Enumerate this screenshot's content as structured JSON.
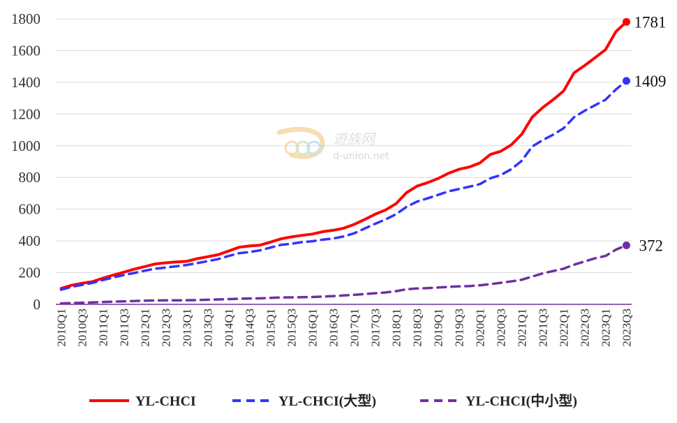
{
  "chart_data": {
    "type": "line",
    "title": "",
    "xlabel": "",
    "ylabel": "",
    "ylim": [
      0,
      1800
    ],
    "y_ticks": [
      0,
      200,
      400,
      600,
      800,
      1000,
      1200,
      1400,
      1600,
      1800
    ],
    "grid": "horizontal",
    "legend_position": "bottom",
    "categories": [
      "2010Q1",
      "2010Q2",
      "2010Q3",
      "2010Q4",
      "2011Q1",
      "2011Q2",
      "2011Q3",
      "2011Q4",
      "2012Q1",
      "2012Q2",
      "2012Q3",
      "2012Q4",
      "2013Q1",
      "2013Q2",
      "2013Q3",
      "2013Q4",
      "2014Q1",
      "2014Q2",
      "2014Q3",
      "2014Q4",
      "2015Q1",
      "2015Q2",
      "2015Q3",
      "2015Q4",
      "2016Q1",
      "2016Q2",
      "2016Q3",
      "2016Q4",
      "2017Q1",
      "2017Q2",
      "2017Q3",
      "2017Q4",
      "2018Q1",
      "2018Q2",
      "2018Q3",
      "2018Q4",
      "2019Q1",
      "2019Q2",
      "2019Q3",
      "2019Q4",
      "2020Q1",
      "2020Q2",
      "2020Q3",
      "2020Q4",
      "2021Q1",
      "2021Q2",
      "2021Q3",
      "2021Q4",
      "2022Q1",
      "2022Q2",
      "2022Q3",
      "2022Q4",
      "2023Q1",
      "2023Q2",
      "2023Q3"
    ],
    "x_tick_labels": [
      "2010Q1",
      "2010Q3",
      "2011Q1",
      "2011Q3",
      "2012Q1",
      "2012Q3",
      "2013Q1",
      "2013Q3",
      "2014Q1",
      "2014Q3",
      "2015Q1",
      "2015Q3",
      "2016Q1",
      "2016Q3",
      "2017Q1",
      "2017Q3",
      "2018Q1",
      "2018Q3",
      "2019Q1",
      "2019Q3",
      "2020Q1",
      "2020Q3",
      "2021Q1",
      "2021Q3",
      "2022Q1",
      "2022Q3",
      "2023Q1",
      "2023Q3"
    ],
    "series": [
      {
        "name": "YL-CHCI",
        "color": "#ff0000",
        "style": "solid",
        "end_label": "1781",
        "values": [
          100,
          120,
          133,
          143,
          165,
          185,
          203,
          222,
          238,
          255,
          262,
          267,
          271,
          288,
          300,
          313,
          336,
          360,
          368,
          373,
          392,
          413,
          425,
          435,
          443,
          458,
          467,
          480,
          504,
          535,
          568,
          595,
          635,
          704,
          745,
          767,
          793,
          826,
          851,
          866,
          891,
          945,
          965,
          1005,
          1072,
          1180,
          1240,
          1290,
          1345,
          1460,
          1505,
          1555,
          1605,
          1720,
          1781
        ]
      },
      {
        "name": "YL-CHCI(大型)",
        "color": "#3333ff",
        "style": "dashed",
        "end_label": "1409",
        "values": [
          92,
          110,
          123,
          135,
          153,
          170,
          185,
          198,
          212,
          225,
          232,
          240,
          248,
          260,
          272,
          285,
          305,
          322,
          330,
          340,
          358,
          375,
          382,
          392,
          398,
          408,
          415,
          428,
          448,
          478,
          508,
          535,
          568,
          615,
          648,
          668,
          690,
          712,
          727,
          742,
          758,
          795,
          815,
          852,
          905,
          995,
          1035,
          1070,
          1110,
          1180,
          1220,
          1255,
          1290,
          1355,
          1409
        ]
      },
      {
        "name": "YL-CHCI(中小型)",
        "color": "#7030a0",
        "style": "dashed",
        "end_label": "372",
        "values": [
          6,
          8,
          10,
          12,
          15,
          17,
          19,
          21,
          23,
          24,
          25,
          25,
          26,
          27,
          29,
          31,
          33,
          35,
          37,
          38,
          41,
          43,
          44,
          45,
          46,
          49,
          52,
          56,
          60,
          65,
          70,
          75,
          83,
          95,
          100,
          102,
          106,
          110,
          113,
          115,
          120,
          127,
          136,
          145,
          155,
          175,
          195,
          210,
          225,
          250,
          270,
          290,
          305,
          345,
          372
        ]
      }
    ]
  },
  "watermark": {
    "cn_text": "遊族网",
    "url_text": "d-union.net"
  }
}
